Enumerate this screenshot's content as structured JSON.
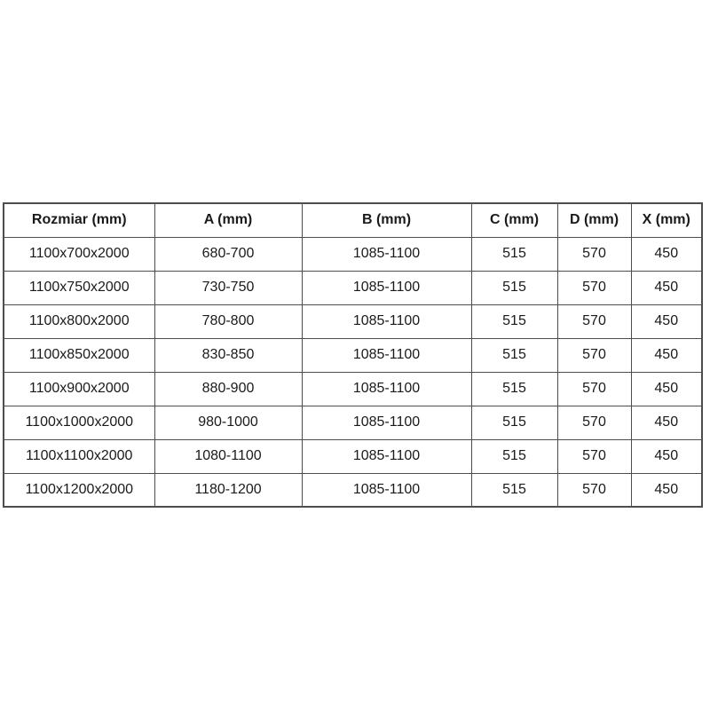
{
  "table": {
    "name": "shower-enclosure-dimensions",
    "headers": [
      "Rozmiar (mm)",
      "A (mm)",
      "B (mm)",
      "C (mm)",
      "D (mm)",
      "X (mm)"
    ],
    "rows": [
      [
        "1100x700x2000",
        "680-700",
        "1085-1100",
        "515",
        "570",
        "450"
      ],
      [
        "1100x750x2000",
        "730-750",
        "1085-1100",
        "515",
        "570",
        "450"
      ],
      [
        "1100x800x2000",
        "780-800",
        "1085-1100",
        "515",
        "570",
        "450"
      ],
      [
        "1100x850x2000",
        "830-850",
        "1085-1100",
        "515",
        "570",
        "450"
      ],
      [
        "1100x900x2000",
        "880-900",
        "1085-1100",
        "515",
        "570",
        "450"
      ],
      [
        "1100x1000x2000",
        "980-1000",
        "1085-1100",
        "515",
        "570",
        "450"
      ],
      [
        "1100x1100x2000",
        "1080-1100",
        "1085-1100",
        "515",
        "570",
        "450"
      ],
      [
        "1100x1200x2000",
        "1180-1200",
        "1085-1100",
        "515",
        "570",
        "450"
      ]
    ],
    "colors": {
      "grid_border": "#4d4d4d",
      "text": "#1a1a1a",
      "background": "#ffffff"
    }
  }
}
